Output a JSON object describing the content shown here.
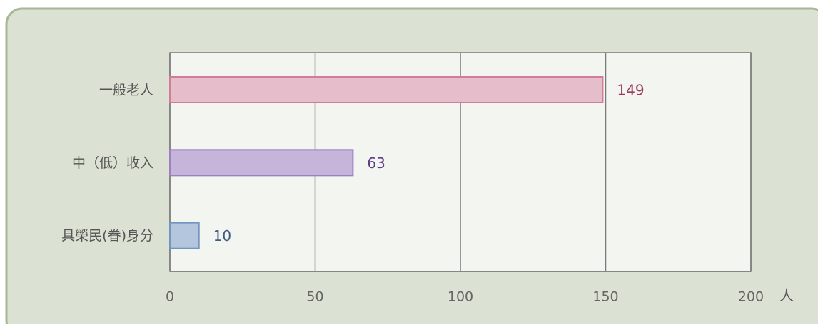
{
  "chart_data": {
    "type": "hbar",
    "categories": [
      "一般老人",
      "中（低）收入",
      "具榮民(眷)身分"
    ],
    "values": [
      149,
      63,
      10
    ],
    "colors": [
      "#e5bdcb",
      "#c6b4da",
      "#b4c6dd"
    ],
    "edge_colors": [
      "#d27c99",
      "#9c80c2",
      "#7296be"
    ],
    "label_colors": [
      "#9c3a5c",
      "#5b3f86",
      "#3e5b80"
    ],
    "xlabel": "人",
    "xlim": [
      0,
      200
    ],
    "xticks": [
      0,
      50,
      100,
      150,
      200
    ],
    "grid": true
  }
}
